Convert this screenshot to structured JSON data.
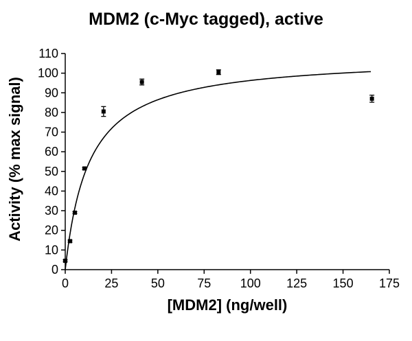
{
  "chart_data": {
    "type": "scatter",
    "title": "MDM2 (c-Myc tagged), active",
    "xlabel": "[MDM2] (ng/well)",
    "ylabel": "Activity (% max signal)",
    "xlim": [
      0,
      175
    ],
    "ylim": [
      0,
      110
    ],
    "x_ticks": [
      0,
      25,
      50,
      75,
      100,
      125,
      150,
      175
    ],
    "y_ticks": [
      0,
      10,
      20,
      30,
      40,
      50,
      60,
      70,
      80,
      90,
      100,
      110
    ],
    "grid": false,
    "legend": "none",
    "series": [
      {
        "points": [
          {
            "x": 0,
            "y": 4.5,
            "err": 0.5
          },
          {
            "x": 2.6,
            "y": 14.5,
            "err": 0.5
          },
          {
            "x": 5.2,
            "y": 29,
            "err": 0.5
          },
          {
            "x": 10.4,
            "y": 51.5,
            "err": 0.5
          },
          {
            "x": 20.7,
            "y": 80.5,
            "err": 2.5
          },
          {
            "x": 41.4,
            "y": 95.5,
            "err": 1.5
          },
          {
            "x": 82.8,
            "y": 100.5,
            "err": 1.2
          },
          {
            "x": 165.6,
            "y": 87,
            "err": 1.8
          }
        ],
        "fit": {
          "model": "hyperbola",
          "vmax": 108.6,
          "k": 12.8,
          "x_range": [
            0,
            165
          ]
        }
      }
    ],
    "colors": {
      "marker": "#000000",
      "line": "#000000",
      "axis": "#000000"
    }
  }
}
